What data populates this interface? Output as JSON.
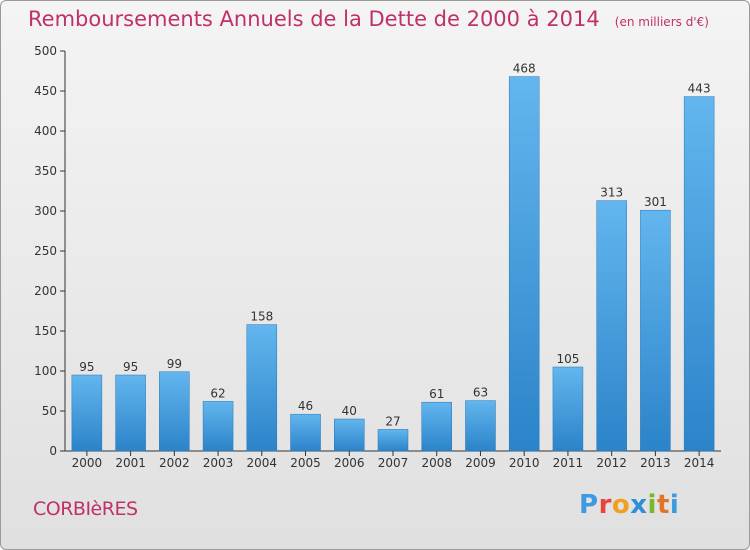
{
  "title": "Remboursements Annuels de la Dette de 2000 à 2014",
  "unit": "(en milliers d'€)",
  "commune": "CORBIèRES",
  "logo": {
    "letters": [
      "P",
      "r",
      "o",
      "x",
      "i",
      "t",
      "i"
    ],
    "colors": [
      "#3d9ae0",
      "#e8443a",
      "#f0a020",
      "#2e8fd8",
      "#78b82a",
      "#e0752a",
      "#3d9ae0"
    ]
  },
  "colors": {
    "bar_light": "#63b6ee",
    "bar_dark": "#2b83c9",
    "title": "#c0306a",
    "axis": "#333333"
  },
  "chart_data": {
    "type": "bar",
    "title": "Remboursements Annuels de la Dette de 2000 à 2014",
    "xlabel": "",
    "ylabel": "",
    "categories": [
      "2000",
      "2001",
      "2002",
      "2003",
      "2004",
      "2005",
      "2006",
      "2007",
      "2008",
      "2009",
      "2010",
      "2011",
      "2012",
      "2013",
      "2014"
    ],
    "values": [
      95,
      95,
      99,
      62,
      158,
      46,
      40,
      27,
      61,
      63,
      468,
      105,
      313,
      301,
      443
    ],
    "ylim": [
      0,
      500
    ],
    "yticks": [
      0,
      50,
      100,
      150,
      200,
      250,
      300,
      350,
      400,
      450,
      500
    ],
    "grid": false
  }
}
